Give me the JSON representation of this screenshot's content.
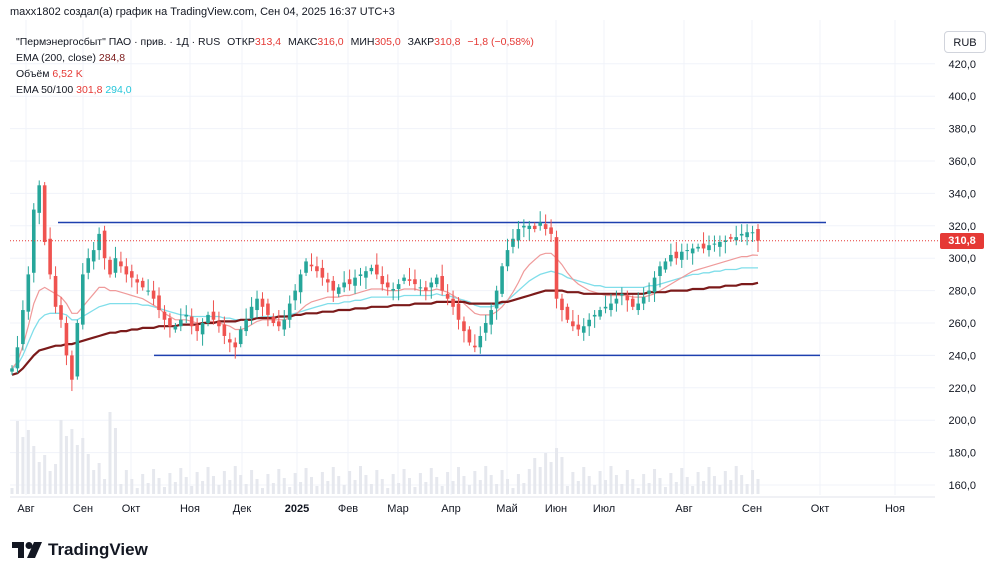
{
  "header": {
    "text": "maxx1802 создал(а) график на TradingView.com, Сен 04, 2025 16:37 UTC+3"
  },
  "legend": {
    "symbol": "\"Пермэнергосбыт\" ПАО · прив. · 1Д · RUS",
    "ohlc": [
      {
        "label": "ОТКР",
        "value": "313,4"
      },
      {
        "label": "МАКС",
        "value": "316,0"
      },
      {
        "label": "МИН",
        "value": "305,0"
      },
      {
        "label": "ЗАКР",
        "value": "310,8"
      }
    ],
    "change": "−1,8 (−0,58%)",
    "ema200_label": "EMA (200, close)",
    "ema200_value": "284,8",
    "volume_label": "Объём",
    "volume_value": "6,52 K",
    "ema_fast_label": "EMA 50/100",
    "ema50_value": "301,8",
    "ema100_value": "294,0"
  },
  "currency_button": "RUB",
  "last_price_badge": "310,8",
  "logo_text": "TradingView",
  "colors": {
    "up": "#26a69a",
    "down": "#ef5350",
    "ema200": "#7b1a1a",
    "ema100": "#80deea",
    "ema50": "#ef9a9a",
    "hline": "#1e40af",
    "price": "#e53935"
  },
  "chart_data": {
    "type": "candlestick",
    "y_ticks": [
      "160,0",
      "180,0",
      "200,0",
      "220,0",
      "240,0",
      "260,0",
      "280,0",
      "300,0",
      "320,0",
      "340,0",
      "360,0",
      "380,0",
      "400,0",
      "420,0"
    ],
    "ylim": [
      150,
      425
    ],
    "x_ticks": [
      "Авг",
      "Сен",
      "Окт",
      "Ноя",
      "Дек",
      "2025",
      "Фев",
      "Мар",
      "Апр",
      "Май",
      "Июн",
      "Июл",
      "Авг",
      "Сен",
      "Окт",
      "Ноя"
    ],
    "horizontal_lines": [
      322,
      240
    ],
    "last_price": 310.8,
    "close_series": [
      232,
      245,
      268,
      290,
      330,
      345,
      310,
      290,
      270,
      262,
      240,
      225,
      260,
      290,
      300,
      305,
      315,
      300,
      290,
      300,
      295,
      290,
      288,
      285,
      282,
      280,
      275,
      268,
      262,
      258,
      258,
      262,
      265,
      258,
      255,
      260,
      265,
      262,
      258,
      252,
      248,
      245,
      256,
      262,
      270,
      275,
      270,
      265,
      260,
      258,
      262,
      272,
      280,
      290,
      298,
      295,
      292,
      288,
      285,
      280,
      282,
      285,
      284,
      288,
      290,
      292,
      294,
      290,
      284,
      282,
      281,
      284,
      288,
      286,
      284,
      282,
      280,
      285,
      288,
      280,
      275,
      270,
      262,
      255,
      248,
      245,
      252,
      260,
      268,
      280,
      295,
      305,
      312,
      318,
      320,
      320,
      318,
      322,
      318,
      315,
      275,
      268,
      262,
      258,
      256,
      258,
      262,
      265,
      268,
      270,
      272,
      275,
      278,
      274,
      270,
      272,
      276,
      280,
      288,
      295,
      298,
      302,
      300,
      304,
      305,
      306,
      307,
      306,
      308,
      309,
      310,
      311,
      312,
      313,
      315,
      316,
      316,
      310.8
    ],
    "ema50": [
      232,
      236,
      246,
      258,
      272,
      280,
      282,
      280,
      278,
      276,
      272,
      266,
      266,
      270,
      274,
      278,
      282,
      282,
      280,
      280,
      279,
      278,
      277,
      276,
      275,
      273,
      271,
      269,
      266,
      264,
      262,
      262,
      262,
      261,
      260,
      260,
      261,
      261,
      260,
      259,
      258,
      256,
      256,
      257,
      259,
      261,
      262,
      262,
      262,
      262,
      262,
      263,
      265,
      268,
      271,
      273,
      274,
      275,
      276,
      276,
      276,
      277,
      277,
      278,
      279,
      280,
      281,
      281,
      281,
      280,
      280,
      280,
      281,
      281,
      281,
      280,
      280,
      280,
      281,
      280,
      279,
      277,
      275,
      272,
      269,
      266,
      265,
      265,
      265,
      267,
      270,
      274,
      279,
      285,
      292,
      296,
      299,
      302,
      303,
      303,
      300,
      296,
      291,
      287,
      284,
      282,
      280,
      279,
      278,
      277,
      277,
      277,
      277,
      277,
      276,
      276,
      276,
      277,
      278,
      280,
      282,
      284,
      286,
      288,
      290,
      292,
      293,
      294,
      295,
      296,
      297,
      298,
      299,
      300,
      301,
      301,
      302,
      301.8
    ],
    "ema100": [
      232,
      234,
      240,
      248,
      256,
      262,
      265,
      266,
      266,
      266,
      265,
      262,
      262,
      264,
      266,
      268,
      270,
      271,
      272,
      272,
      272,
      272,
      272,
      272,
      271,
      271,
      270,
      269,
      268,
      267,
      266,
      265,
      265,
      264,
      264,
      264,
      264,
      264,
      264,
      263,
      263,
      262,
      262,
      262,
      263,
      263,
      264,
      264,
      264,
      264,
      264,
      265,
      266,
      267,
      268,
      269,
      270,
      271,
      272,
      272,
      272,
      273,
      273,
      274,
      274,
      275,
      276,
      276,
      276,
      276,
      276,
      276,
      277,
      277,
      277,
      277,
      277,
      277,
      278,
      277,
      277,
      276,
      275,
      274,
      273,
      271,
      270,
      270,
      270,
      271,
      272,
      274,
      277,
      280,
      283,
      286,
      288,
      290,
      291,
      292,
      291,
      290,
      288,
      287,
      286,
      285,
      284,
      283,
      283,
      282,
      282,
      282,
      282,
      282,
      282,
      282,
      282,
      283,
      283,
      284,
      285,
      286,
      287,
      288,
      289,
      290,
      290,
      291,
      291,
      292,
      292,
      293,
      293,
      293,
      294,
      294,
      294,
      294.0
    ],
    "ema200": [
      228,
      229,
      232,
      236,
      240,
      243,
      244,
      245,
      246,
      246,
      247,
      247,
      248,
      249,
      250,
      251,
      252,
      253,
      254,
      254,
      255,
      255,
      256,
      256,
      257,
      257,
      257,
      258,
      258,
      258,
      258,
      259,
      259,
      259,
      259,
      260,
      260,
      260,
      261,
      261,
      261,
      261,
      262,
      262,
      262,
      263,
      263,
      263,
      263,
      264,
      264,
      264,
      265,
      265,
      266,
      266,
      266,
      267,
      267,
      267,
      268,
      268,
      268,
      269,
      269,
      269,
      270,
      270,
      270,
      270,
      271,
      271,
      271,
      271,
      272,
      272,
      272,
      272,
      273,
      273,
      273,
      273,
      273,
      273,
      272,
      272,
      272,
      272,
      272,
      272,
      273,
      273,
      274,
      275,
      276,
      277,
      278,
      279,
      280,
      280,
      280,
      280,
      279,
      279,
      279,
      278,
      278,
      278,
      278,
      278,
      278,
      278,
      278,
      278,
      278,
      278,
      278,
      279,
      279,
      279,
      279,
      280,
      280,
      280,
      280,
      281,
      281,
      281,
      282,
      282,
      282,
      283,
      283,
      283,
      284,
      284,
      284,
      284.8
    ]
  }
}
